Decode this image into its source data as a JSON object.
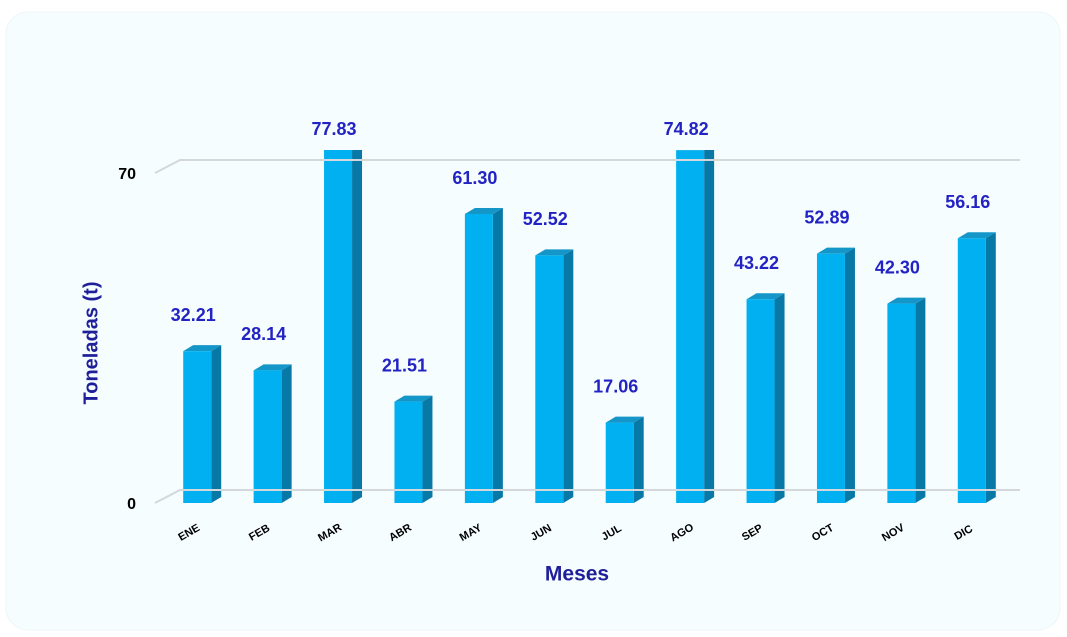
{
  "chart_data": {
    "type": "bar3d",
    "categories": [
      "ENE",
      "FEB",
      "MAR",
      "ABR",
      "MAY",
      "JUN",
      "JUL",
      "AGO",
      "SEP",
      "OCT",
      "NOV",
      "DIC"
    ],
    "values": [
      32.21,
      28.14,
      77.83,
      21.51,
      61.3,
      52.52,
      17.06,
      74.82,
      43.22,
      52.89,
      42.3,
      56.16
    ],
    "value_labels": [
      "32.21",
      "28.14",
      "77.83",
      "21.51",
      "61.30",
      "52.52",
      "17.06",
      "74.82",
      "43.22",
      "52.89",
      "42.30",
      "56.16"
    ],
    "color": "#00b0f0",
    "ylim": [
      0,
      70
    ],
    "yticks": [
      0,
      70
    ],
    "grid": true,
    "ylabel": "Toneladas (t)",
    "xlabel": "Meses"
  }
}
